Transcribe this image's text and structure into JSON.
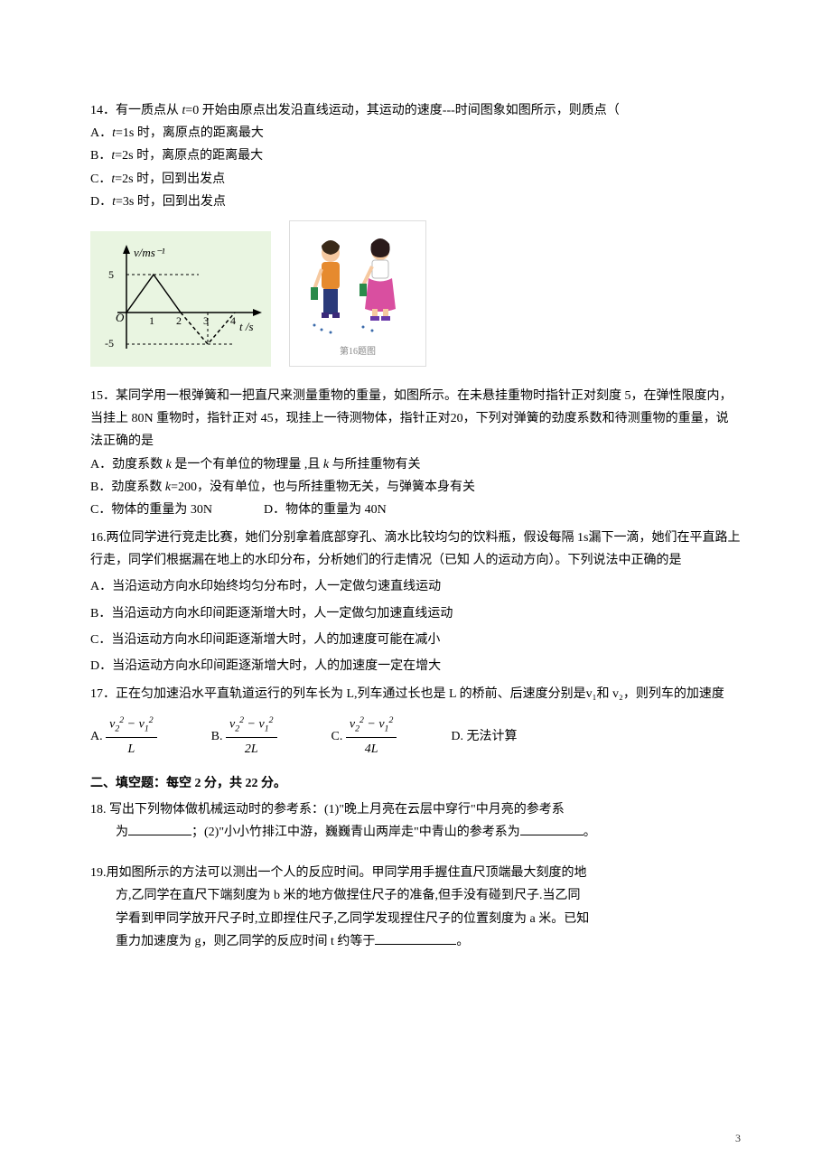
{
  "q14": {
    "stem": "14．有一质点从 {i}t{/i}=0 开始由原点出发沿直线运动，其运动的速度---时间图象如图所示，则质点（",
    "options": {
      "a": "A．{i}t{/i}=1s 时，离原点的距离最大",
      "b": "B．{i}t{/i}=2s 时，离原点的距离最大",
      "c": "C．{i}t{/i}=2s 时，回到出发点",
      "d": "D．{i}t{/i}=3s 时，回到出发点"
    },
    "figure": {
      "graph": {
        "bg": "#e9f5e1",
        "axis_color": "#000000",
        "line_color": "#000000",
        "dash_color": "#000000",
        "ylabel": "v/ms⁻¹",
        "xlabel": "t /s",
        "yticks": [
          "5",
          "-5"
        ],
        "xticks": [
          "1",
          "2",
          "3",
          "4"
        ]
      },
      "illus": {
        "girl_left": {
          "top_color": "#e68a2e",
          "bottom_color": "#2a3a7a"
        },
        "girl_right": {
          "top_color": "#ffffff",
          "bottom_color": "#d94fa0"
        },
        "caption_color": "#888888",
        "caption": "第16题图"
      }
    }
  },
  "q15": {
    "stem": "15．某同学用一根弹簧和一把直尺来测量重物的重量，如图所示。在未悬挂重物时指针正对刻度 5，在弹性限度内，当挂上 80N 重物时，指针正对 45，现挂上一待测物体，指针正对20，下列对弹簧的劲度系数和待测重物的重量，说法正确的是",
    "options": {
      "a": "A．劲度系数 {i}k{/i} 是一个有单位的物理量 ,且 {i}k{/i} 与所挂重物有关",
      "b": "B．劲度系数 {i}k{/i}=200，没有单位，也与所挂重物无关，与弹簧本身有关",
      "c": "C．物体的重量为 30N",
      "d": "D．物体的重量为 40N"
    }
  },
  "q16": {
    "stem": "16.两位同学进行竞走比赛，她们分别拿着底部穿孔、滴水比较均匀的饮料瓶，假设每隔 1s漏下一滴，她们在平直路上行走，同学们根据漏在地上的水印分布，分析她们的行走情况（已知 人的运动方向）。下列说法中正确的是",
    "options": {
      "a": "A．当沿运动方向水印始终均匀分布时，人一定做匀速直线运动",
      "b": "B．当沿运动方向水印间距逐渐增大时，人一定做匀加速直线运动",
      "c": "C．当沿运动方向水印间距逐渐增大时，人的加速度可能在减小",
      "d": "D．当沿运动方向水印间距逐渐增大时，人的加速度一定在增大"
    }
  },
  "q17": {
    "stem": "17．正在匀加速沿水平直轨道运行的列车长为 L,列车通过长也是 L 的桥前、后速度分别是v₁和 v₂，则列车的加速度",
    "options": {
      "a": "A.",
      "b": "B.",
      "c": "C.",
      "d": "D. 无法计算"
    },
    "fractions": {
      "a": {
        "num": "v₂² − v₁²",
        "den": "L"
      },
      "b": {
        "num": "v₂² − v₁²",
        "den": "2L"
      },
      "c": {
        "num": "v₂² − v₁²",
        "den": "4L"
      }
    }
  },
  "section2": "二、填空题：每空 2 分，共 22 分。",
  "q18": {
    "stem1": "18. 写出下列物体做机械运动时的参考系：(1)\"晚上月亮在云层中穿行\"中月亮的参考系",
    "stem2a": "为",
    "stem2b": "；(2)\"小小竹排江中游，巍巍青山两岸走\"中青山的参考系为",
    "stem2c": "。"
  },
  "q19": {
    "stem1": "19.用如图所示的方法可以测出一个人的反应时间。甲同学用手握住直尺顶端最大刻度的地",
    "stem2": "方,乙同学在直尺下端刻度为 b 米的地方做捏住尺子的准备,但手没有碰到尺子.当乙同",
    "stem3": "学看到甲同学放开尺子时,立即捏住尺子,乙同学发现捏住尺子的位置刻度为 a 米。已知",
    "stem4a": "重力加速度为 g，则乙同学的反应时间 t 约等于",
    "stem4b": "。"
  },
  "pageNumber": "3"
}
